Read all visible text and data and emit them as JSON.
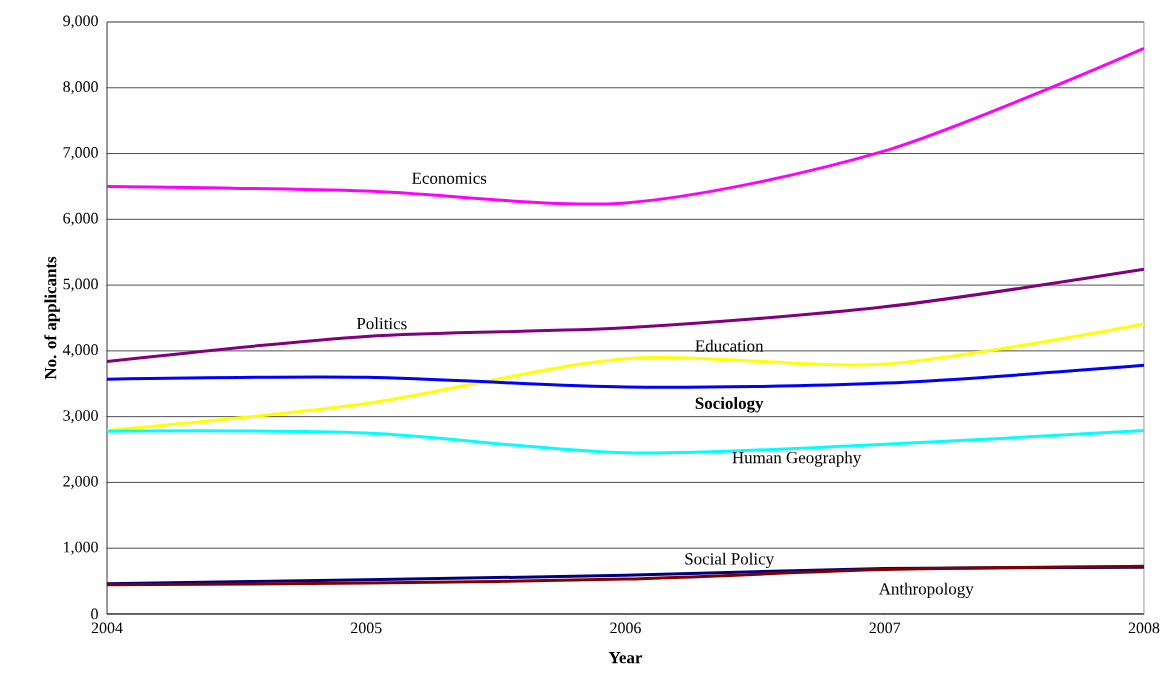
{
  "chart_data": {
    "type": "line",
    "xlabel": "Year",
    "ylabel": "No. of applicants",
    "x": [
      2004,
      2005,
      2006,
      2007,
      2008
    ],
    "xlim": [
      2004,
      2008
    ],
    "xticks": [
      2004,
      2005,
      2006,
      2007,
      2008
    ],
    "ylim": [
      0,
      9000
    ],
    "yticks": [
      {
        "value": 0,
        "label": "0"
      },
      {
        "value": 1000,
        "label": "1,000"
      },
      {
        "value": 2000,
        "label": "2,000"
      },
      {
        "value": 3000,
        "label": "3,000"
      },
      {
        "value": 4000,
        "label": "4,000"
      },
      {
        "value": 5000,
        "label": "5,000"
      },
      {
        "value": 6000,
        "label": "6,000"
      },
      {
        "value": 7000,
        "label": "7,000"
      },
      {
        "value": 8000,
        "label": "8,000"
      },
      {
        "value": 9000,
        "label": "9,000"
      }
    ],
    "grid": "y",
    "marker": "none",
    "line_style": "solid",
    "series": [
      {
        "name": "Economics",
        "color": "#ff00ff",
        "values": [
          6500,
          6430,
          6250,
          7040,
          8600
        ]
      },
      {
        "name": "Politics",
        "color": "#800080",
        "values": [
          3840,
          4220,
          4350,
          4670,
          5240
        ]
      },
      {
        "name": "Education",
        "color": "#ffff00",
        "values": [
          2790,
          3200,
          3880,
          3800,
          4410
        ]
      },
      {
        "name": "Sociology",
        "color": "#0000ff",
        "values": [
          3570,
          3600,
          3450,
          3510,
          3780
        ]
      },
      {
        "name": "Human Geography",
        "color": "#00ffff",
        "values": [
          2780,
          2750,
          2450,
          2580,
          2790
        ]
      },
      {
        "name": "Social Policy",
        "color": "#000080",
        "values": [
          460,
          520,
          590,
          690,
          710
        ]
      },
      {
        "name": "Anthropology",
        "color": "#800000",
        "values": [
          445,
          470,
          530,
          675,
          725
        ]
      }
    ]
  }
}
